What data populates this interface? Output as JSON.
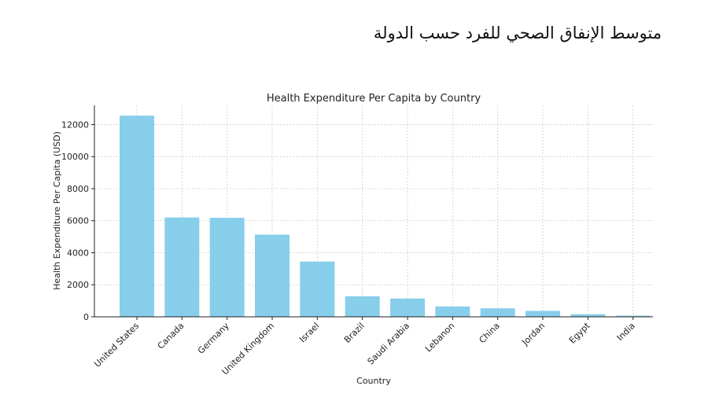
{
  "page_title": "متوسط الإنفاق الصحي للفرد حسب الدولة",
  "colors": {
    "bar": "#87CEEB",
    "grid": "#cccccc",
    "axis": "#222222"
  },
  "chart_data": {
    "type": "bar",
    "title": "Health Expenditure Per Capita by Country",
    "xlabel": "Country",
    "ylabel": "Health Expenditure Per Capita (USD)",
    "ylim": [
      0,
      13200
    ],
    "yticks": [
      0,
      2000,
      4000,
      6000,
      8000,
      10000,
      12000
    ],
    "grid": true,
    "categories": [
      "United States",
      "Canada",
      "Germany",
      "United Kingdom",
      "Israel",
      "Brazil",
      "Saudi Arabia",
      "Lebanon",
      "China",
      "Jordan",
      "Egypt",
      "India"
    ],
    "values": [
      12555,
      6200,
      6180,
      5130,
      3450,
      1280,
      1140,
      650,
      530,
      370,
      160,
      70
    ]
  }
}
